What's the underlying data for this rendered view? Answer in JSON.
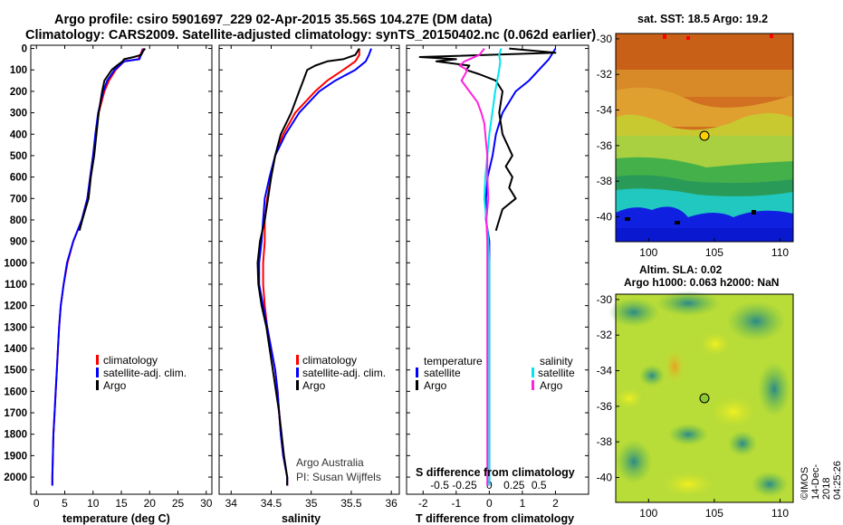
{
  "header": {
    "title_line1": "Argo profile: csiro 5901697_229 02-Apr-2015 35.56S 104.27E (DM data)",
    "title_line2": "Climatology: CARS2009. Satellite-adjusted climatology: synTS_20150402.nc (0.062d earlier)"
  },
  "colors": {
    "climatology": "#ff0000",
    "satellite": "#0000ff",
    "argo": "#000000",
    "sal_satellite": "#00e5ee",
    "sal_argo": "#ff22dd"
  },
  "chart_data": [
    {
      "type": "line",
      "name": "temperature-profile",
      "xlabel": "temperature (deg C)",
      "ylabel": "",
      "xlim": [
        -1,
        31
      ],
      "ylim": [
        2080,
        -15
      ],
      "xticks": [
        0,
        5,
        10,
        15,
        20,
        25,
        30
      ],
      "yticks": [
        0,
        100,
        200,
        300,
        400,
        500,
        600,
        700,
        800,
        900,
        1000,
        1100,
        1200,
        1300,
        1400,
        1500,
        1600,
        1700,
        1800,
        1900,
        2000
      ],
      "legend": [
        "climatology",
        "satellite-adj. clim.",
        "Argo"
      ],
      "series": [
        {
          "name": "climatology",
          "depth": [
            0,
            20,
            50,
            60,
            100,
            150,
            200,
            300,
            400,
            500,
            600,
            700,
            800,
            900,
            1000,
            1100,
            1200,
            1300,
            1400,
            1500,
            1600,
            1700,
            1800,
            1900,
            2000,
            2040
          ],
          "values": [
            18.8,
            18.5,
            18.0,
            15.5,
            14.0,
            12.8,
            12.0,
            11.0,
            10.5,
            10.0,
            9.5,
            9.0,
            8.0,
            6.5,
            5.5,
            4.8,
            4.3,
            4.0,
            3.8,
            3.6,
            3.4,
            3.2,
            3.0,
            2.9,
            2.8,
            2.8
          ]
        },
        {
          "name": "satellite-adj. clim.",
          "depth": [
            0,
            20,
            50,
            60,
            100,
            150,
            200,
            300,
            400,
            500,
            600,
            700,
            800,
            900,
            1000,
            1100,
            1200,
            1300,
            1400,
            1500,
            1600,
            1700,
            1800,
            1900,
            2000,
            2040
          ],
          "values": [
            19.0,
            18.6,
            18.2,
            15.5,
            13.8,
            12.5,
            11.8,
            10.9,
            10.4,
            10.0,
            9.5,
            9.0,
            8.0,
            6.5,
            5.4,
            4.8,
            4.3,
            4.0,
            3.8,
            3.6,
            3.4,
            3.2,
            3.0,
            2.9,
            2.8,
            2.8
          ]
        },
        {
          "name": "Argo",
          "depth": [
            0,
            10,
            30,
            40,
            50,
            60,
            80,
            100,
            150,
            200,
            250,
            300,
            400,
            500,
            600,
            700,
            800,
            850
          ],
          "values": [
            19.2,
            18.9,
            18.5,
            17.2,
            15.5,
            15.2,
            14.2,
            13.3,
            12.0,
            11.6,
            11.3,
            11.0,
            10.6,
            10.2,
            9.6,
            9.2,
            8.1,
            7.6
          ]
        }
      ]
    },
    {
      "type": "line",
      "name": "salinity-profile",
      "xlabel": "salinity",
      "xlim": [
        33.85,
        36.1
      ],
      "ylim": [
        2080,
        -15
      ],
      "xticks": [
        34,
        34.5,
        35,
        35.5,
        36
      ],
      "legend": [
        "climatology",
        "satellite-adj. clim.",
        "Argo"
      ],
      "series": [
        {
          "name": "climatology",
          "depth": [
            0,
            30,
            60,
            100,
            150,
            200,
            300,
            400,
            500,
            600,
            700,
            800,
            900,
            1000,
            1100,
            1200,
            1300,
            1400,
            1500,
            1600,
            1700,
            1800,
            1900,
            2000,
            2040
          ],
          "values": [
            35.6,
            35.6,
            35.55,
            35.4,
            35.2,
            35.05,
            34.8,
            34.65,
            34.55,
            34.5,
            34.45,
            34.42,
            34.42,
            34.4,
            34.4,
            34.42,
            34.45,
            34.5,
            34.55,
            34.58,
            34.6,
            34.62,
            34.65,
            34.7,
            34.7
          ]
        },
        {
          "name": "satellite-adj. clim.",
          "depth": [
            0,
            30,
            60,
            100,
            150,
            200,
            300,
            400,
            500,
            600,
            700,
            800,
            900,
            1000,
            1100,
            1200,
            1300,
            1400,
            1500,
            1600,
            1700,
            1800,
            1900,
            2000,
            2040
          ],
          "values": [
            35.75,
            35.72,
            35.68,
            35.55,
            35.3,
            35.1,
            34.85,
            34.68,
            34.55,
            34.48,
            34.42,
            34.4,
            34.38,
            34.35,
            34.35,
            34.4,
            34.45,
            34.5,
            34.55,
            34.58,
            34.6,
            34.62,
            34.65,
            34.7,
            34.7
          ]
        },
        {
          "name": "Argo",
          "depth": [
            0,
            30,
            50,
            60,
            80,
            100,
            150,
            200,
            250,
            300,
            400,
            500,
            600,
            700,
            800,
            900,
            1000,
            1100,
            1200,
            1300,
            1400,
            1500,
            1600,
            1700,
            1800,
            1900,
            2000,
            2040
          ],
          "values": [
            35.6,
            35.55,
            35.4,
            35.2,
            35.05,
            34.95,
            34.9,
            34.85,
            34.8,
            34.75,
            34.62,
            34.55,
            34.5,
            34.46,
            34.42,
            34.36,
            34.33,
            34.34,
            34.38,
            34.44,
            34.48,
            34.52,
            34.56,
            34.6,
            34.63,
            34.66,
            34.7,
            34.7
          ]
        }
      ]
    },
    {
      "type": "line",
      "name": "difference-profile",
      "xlabel": "T difference from climatology",
      "xlabel2": "S difference from climatology",
      "xlim": [
        -2.5,
        3.0
      ],
      "ylim": [
        2080,
        -15
      ],
      "xticks": [
        -2,
        -1,
        0,
        1,
        2
      ],
      "sticks": [
        -0.5,
        -0.25,
        0,
        0.25,
        0.5
      ],
      "stick_labels": [
        "-0.5",
        "-0.25",
        "0",
        "0.25",
        "0.5"
      ],
      "legend_temperature": {
        "heading": "temperature",
        "items": [
          "satellite",
          "Argo"
        ]
      },
      "legend_salinity": {
        "heading": "salinity",
        "items": [
          "satellite",
          "Argo"
        ]
      },
      "series": [
        {
          "name": "temperature satellite",
          "depth": [
            0,
            50,
            100,
            150,
            200,
            300,
            400,
            500,
            600,
            700,
            800,
            900,
            1000,
            1500,
            2040
          ],
          "values": [
            2.0,
            1.8,
            1.5,
            1.2,
            0.8,
            0.4,
            0.2,
            0.1,
            -0.05,
            -0.1,
            -0.1,
            0,
            0,
            0,
            0
          ]
        },
        {
          "name": "temperature Argo",
          "depth": [
            0,
            20,
            40,
            50,
            60,
            80,
            100,
            120,
            150,
            200,
            300,
            400,
            500,
            550,
            600,
            650,
            700,
            750,
            800,
            850
          ],
          "values": [
            0.6,
            2.0,
            -2.1,
            -1.0,
            -1.6,
            -0.6,
            -0.7,
            -0.3,
            0.2,
            0.4,
            0.3,
            0.4,
            0.7,
            0.5,
            0.7,
            0.6,
            0.8,
            0.4,
            0.3,
            0.2
          ]
        },
        {
          "name": "salinity satellite",
          "depth": [
            0,
            30,
            60,
            100,
            200,
            300,
            400,
            500,
            600,
            700,
            800,
            900,
            1000,
            1500,
            2040
          ],
          "values": [
            0.12,
            0.1,
            0.11,
            0.1,
            0.06,
            0.03,
            0,
            -0.02,
            -0.04,
            -0.05,
            -0.03,
            -0.01,
            0,
            0,
            0
          ]
        },
        {
          "name": "salinity Argo",
          "depth": [
            0,
            30,
            60,
            80,
            100,
            150,
            200,
            250,
            300,
            350,
            400,
            500,
            600,
            700,
            800,
            900,
            1000,
            2040
          ],
          "values": [
            -0.05,
            -0.1,
            -0.25,
            -0.3,
            -0.22,
            -0.28,
            -0.2,
            -0.12,
            -0.08,
            -0.05,
            -0.04,
            -0.02,
            -0.02,
            -0.01,
            -0.03,
            -0.02,
            -0.02,
            -0.02
          ]
        }
      ]
    },
    {
      "type": "heatmap",
      "name": "sst-map",
      "title": "sat. SST: 18.5 Argo: 19.2",
      "xticks": [
        100,
        105,
        110
      ],
      "yticks": [
        -30,
        -32,
        -34,
        -36,
        -38,
        -40
      ],
      "float_position": {
        "lon": 104.27,
        "lat": -35.56
      }
    },
    {
      "type": "heatmap",
      "name": "sla-map",
      "title_line1": "Altim. SLA: 0.02",
      "title_line2": "Argo h1000: 0.063 h2000: NaN",
      "xticks": [
        100,
        105,
        110
      ],
      "yticks": [
        -30,
        -32,
        -34,
        -36,
        -38,
        -40
      ],
      "float_position": {
        "lon": 104.27,
        "lat": -35.56
      }
    }
  ],
  "credits": {
    "line1": "Argo Australia",
    "line2": "PI: Susan Wijffels",
    "stamp": "©IMOS 14-Dec-2018 04:25:26"
  }
}
